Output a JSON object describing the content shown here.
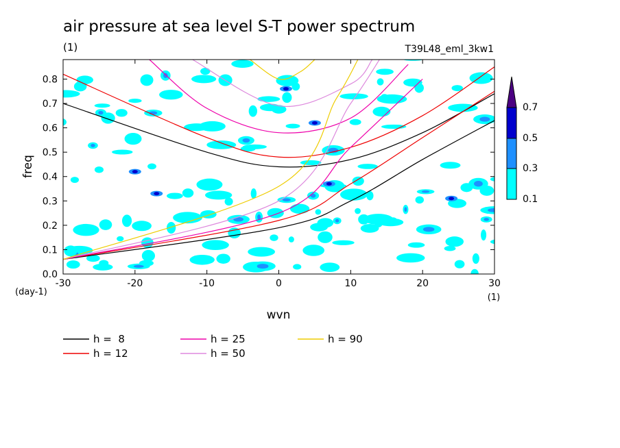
{
  "chart_data": {
    "type": "contour",
    "title": "air pressure at sea level S-T power spectrum",
    "title_units": "(1)",
    "run_label": "T39L48_eml_3kw1",
    "xlabel": "wvn",
    "x_units": "(1)",
    "ylabel": "freq",
    "y_units": "(day-1)",
    "xlim": [
      -30,
      30
    ],
    "ylim": [
      0.0,
      0.88
    ],
    "x_ticks": [
      -30,
      -20,
      -10,
      0,
      10,
      20,
      30
    ],
    "x_tick_labels": [
      "-30",
      "-20",
      "-10",
      "0",
      "10",
      "20",
      "30"
    ],
    "y_ticks": [
      0.0,
      0.1,
      0.2,
      0.3,
      0.4,
      0.5,
      0.6,
      0.7,
      0.8
    ],
    "y_tick_labels": [
      "0.0",
      "0.1",
      "0.2",
      "0.3",
      "0.4",
      "0.5",
      "0.6",
      "0.7",
      "0.8"
    ],
    "colorbar": {
      "levels": [
        "0.1",
        "0.3",
        "0.5",
        "0.7"
      ],
      "colors": [
        "#00ffff",
        "#1e90ff",
        "#0000cd",
        "#4b0082"
      ]
    },
    "legend": [
      {
        "label": "h =  8",
        "h": 8,
        "color": "#000000"
      },
      {
        "label": "h = 12",
        "h": 12,
        "color": "#ee0000"
      },
      {
        "label": "h = 25",
        "h": 25,
        "color": "#ee00aa"
      },
      {
        "label": "h = 50",
        "h": 50,
        "color": "#dd88dd"
      },
      {
        "label": "h = 90",
        "h": 90,
        "color": "#eecc00"
      }
    ],
    "series": [
      {
        "name": "h =  8",
        "kelvin": [
          [
            -30,
            0.06
          ],
          [
            0,
            0.19
          ],
          [
            10,
            0.3
          ],
          [
            20,
            0.47
          ],
          [
            30,
            0.63
          ]
        ],
        "ig1": [
          [
            -30,
            0.7
          ],
          [
            -10,
            0.5
          ],
          [
            0,
            0.44
          ],
          [
            10,
            0.47
          ],
          [
            20,
            0.58
          ],
          [
            30,
            0.74
          ]
        ]
      },
      {
        "name": "h = 12",
        "kelvin": [
          [
            -30,
            0.06
          ],
          [
            0,
            0.22
          ],
          [
            10,
            0.37
          ],
          [
            20,
            0.56
          ],
          [
            30,
            0.75
          ]
        ],
        "ig1": [
          [
            -30,
            0.82
          ],
          [
            -10,
            0.56
          ],
          [
            0,
            0.48
          ],
          [
            10,
            0.52
          ],
          [
            20,
            0.65
          ],
          [
            30,
            0.85
          ]
        ]
      },
      {
        "name": "h = 25",
        "kelvin": [
          [
            -30,
            0.06
          ],
          [
            0,
            0.25
          ],
          [
            10,
            0.52
          ],
          [
            20,
            0.8
          ]
        ],
        "ig1": [
          [
            -18,
            0.88
          ],
          [
            -10,
            0.68
          ],
          [
            0,
            0.58
          ],
          [
            10,
            0.64
          ],
          [
            18,
            0.86
          ]
        ]
      },
      {
        "name": "h = 50",
        "kelvin": [
          [
            -30,
            0.06
          ],
          [
            0,
            0.3
          ],
          [
            10,
            0.7
          ],
          [
            14,
            0.88
          ]
        ],
        "ig1": [
          [
            -12,
            0.88
          ],
          [
            0,
            0.69
          ],
          [
            10,
            0.78
          ],
          [
            13,
            0.88
          ]
        ]
      },
      {
        "name": "h = 90",
        "kelvin": [
          [
            -30,
            0.06
          ],
          [
            0,
            0.36
          ],
          [
            8,
            0.72
          ],
          [
            11,
            0.88
          ]
        ],
        "ig1": [
          [
            -4,
            0.88
          ],
          [
            0,
            0.8
          ],
          [
            3,
            0.83
          ],
          [
            5,
            0.88
          ]
        ]
      }
    ]
  }
}
